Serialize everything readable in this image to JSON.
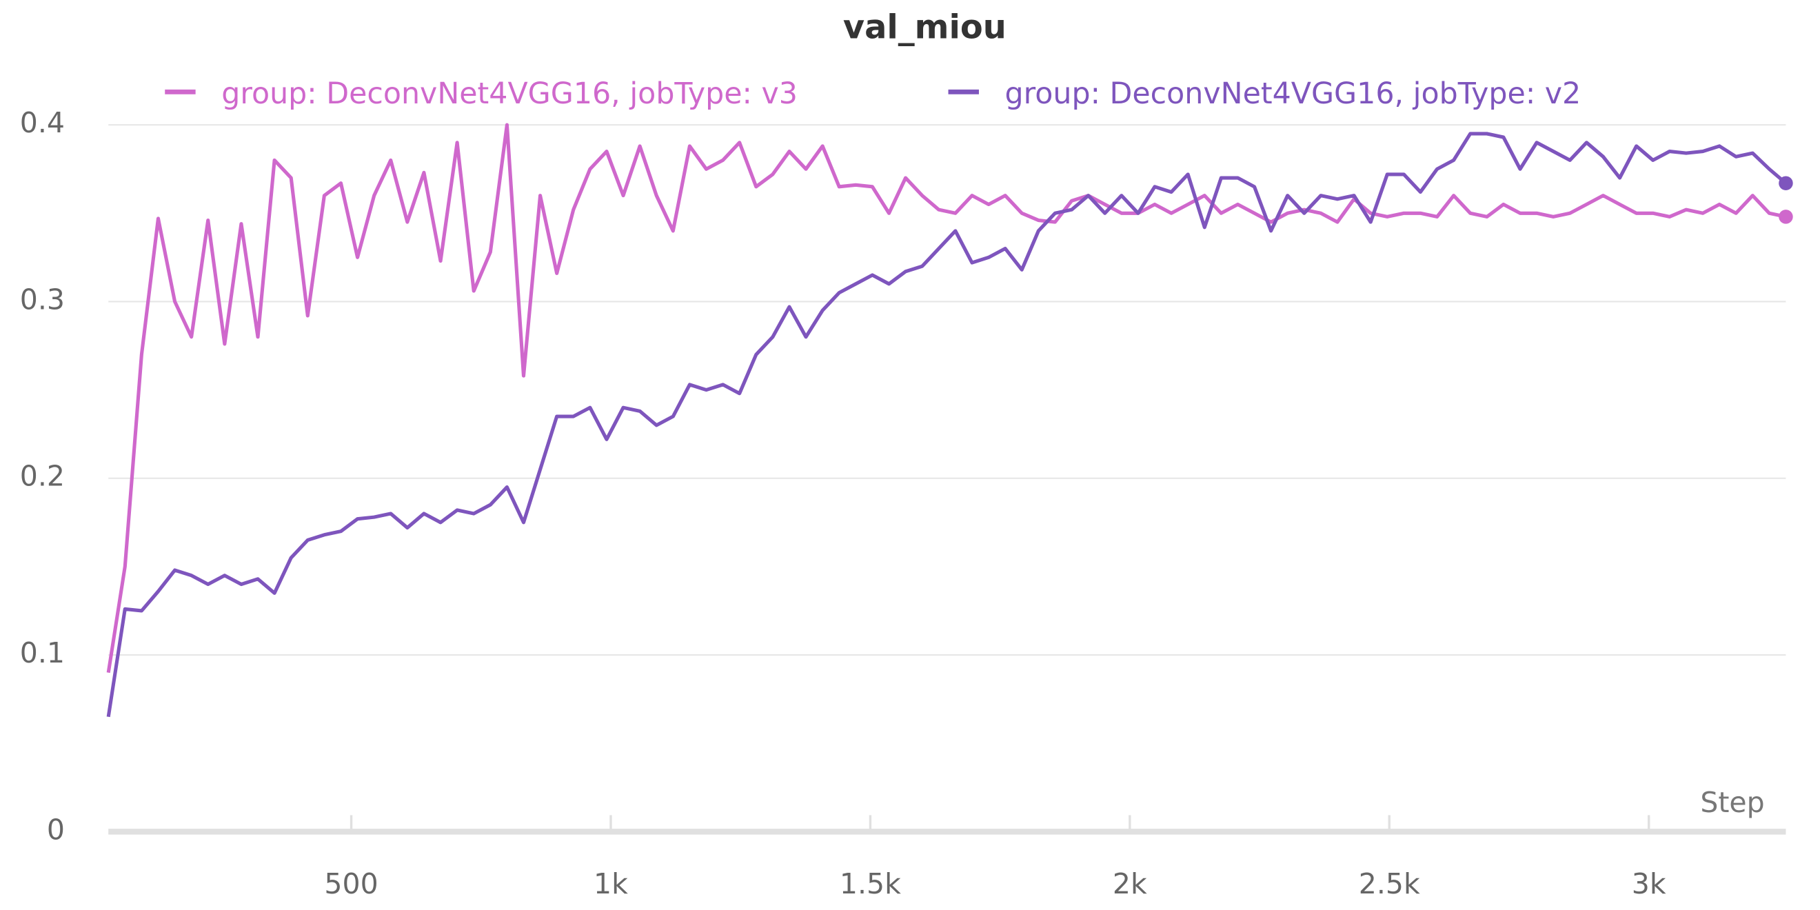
{
  "chart_data": {
    "type": "line",
    "title": "val_miou",
    "xlabel": "Step",
    "x": [
      32,
      64,
      96,
      128,
      160,
      192,
      224,
      256,
      288,
      320,
      352,
      384,
      416,
      448,
      480,
      512,
      544,
      576,
      608,
      640,
      672,
      704,
      736,
      768,
      800,
      832,
      864,
      896,
      928,
      960,
      992,
      1024,
      1056,
      1088,
      1120,
      1152,
      1184,
      1216,
      1248,
      1280,
      1312,
      1344,
      1376,
      1408,
      1440,
      1472,
      1504,
      1536,
      1568,
      1600,
      1632,
      1664,
      1696,
      1728,
      1760,
      1792,
      1824,
      1856,
      1888,
      1920,
      1952,
      1984,
      2016,
      2048,
      2080,
      2112,
      2144,
      2176,
      2208,
      2240,
      2272,
      2304,
      2336,
      2368,
      2400,
      2432,
      2464,
      2496,
      2528,
      2560,
      2592,
      2624,
      2656,
      2688,
      2720,
      2752,
      2784,
      2816,
      2848,
      2880,
      2912,
      2944,
      2976,
      3008,
      3040,
      3072,
      3104,
      3136,
      3168,
      3200,
      3232,
      3264
    ],
    "series": [
      {
        "name": "group: DeconvNet4VGG16, jobType: v3",
        "color": "#cf68cc",
        "values": [
          0.09,
          0.15,
          0.27,
          0.347,
          0.3,
          0.28,
          0.346,
          0.276,
          0.344,
          0.28,
          0.38,
          0.37,
          0.292,
          0.36,
          0.367,
          0.325,
          0.36,
          0.38,
          0.345,
          0.373,
          0.323,
          0.39,
          0.306,
          0.328,
          0.4,
          0.258,
          0.36,
          0.316,
          0.352,
          0.375,
          0.385,
          0.36,
          0.388,
          0.36,
          0.34,
          0.388,
          0.375,
          0.38,
          0.39,
          0.365,
          0.372,
          0.385,
          0.375,
          0.388,
          0.365,
          0.366,
          0.365,
          0.35,
          0.37,
          0.36,
          0.352,
          0.35,
          0.36,
          0.355,
          0.36,
          0.35,
          0.346,
          0.345,
          0.357,
          0.36,
          0.355,
          0.35,
          0.35,
          0.355,
          0.35,
          0.355,
          0.36,
          0.35,
          0.355,
          0.35,
          0.345,
          0.35,
          0.352,
          0.35,
          0.345,
          0.358,
          0.35,
          0.348,
          0.35,
          0.35,
          0.348,
          0.36,
          0.35,
          0.348,
          0.355,
          0.35,
          0.35,
          0.348,
          0.35,
          0.355,
          0.36,
          0.355,
          0.35,
          0.35,
          0.348,
          0.352,
          0.35,
          0.355,
          0.35,
          0.36,
          0.35,
          0.348
        ]
      },
      {
        "name": "group: DeconvNet4VGG16, jobType: v2",
        "color": "#7e55bd",
        "values": [
          0.065,
          0.126,
          0.125,
          0.136,
          0.148,
          0.145,
          0.14,
          0.145,
          0.14,
          0.143,
          0.135,
          0.155,
          0.165,
          0.168,
          0.17,
          0.177,
          0.178,
          0.18,
          0.172,
          0.18,
          0.175,
          0.182,
          0.18,
          0.185,
          0.195,
          0.175,
          0.205,
          0.235,
          0.235,
          0.24,
          0.222,
          0.24,
          0.238,
          0.23,
          0.235,
          0.253,
          0.25,
          0.253,
          0.248,
          0.27,
          0.28,
          0.297,
          0.28,
          0.295,
          0.305,
          0.31,
          0.315,
          0.31,
          0.317,
          0.32,
          0.33,
          0.34,
          0.322,
          0.325,
          0.33,
          0.318,
          0.34,
          0.35,
          0.352,
          0.36,
          0.35,
          0.36,
          0.35,
          0.365,
          0.362,
          0.372,
          0.342,
          0.37,
          0.37,
          0.365,
          0.34,
          0.36,
          0.35,
          0.36,
          0.358,
          0.36,
          0.345,
          0.372,
          0.372,
          0.362,
          0.375,
          0.38,
          0.395,
          0.395,
          0.393,
          0.375,
          0.39,
          0.385,
          0.38,
          0.39,
          0.382,
          0.37,
          0.388,
          0.38,
          0.385,
          0.384,
          0.385,
          0.388,
          0.382,
          0.384,
          0.375,
          0.367
        ]
      }
    ],
    "xlim": [
      32,
      3264
    ],
    "ylim": [
      0,
      0.4
    ],
    "xticks": [
      500,
      {
        "value": 1000,
        "label": "1k"
      },
      {
        "value": 1500,
        "label": "1.5k"
      },
      {
        "value": 2000,
        "label": "2k"
      },
      {
        "value": 2500,
        "label": "2.5k"
      },
      {
        "value": 3000,
        "label": "3k"
      }
    ],
    "yticks": [
      0,
      0.1,
      0.2,
      0.3,
      0.4
    ],
    "grid": true
  }
}
